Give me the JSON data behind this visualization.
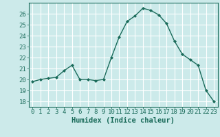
{
  "x": [
    0,
    1,
    2,
    3,
    4,
    5,
    6,
    7,
    8,
    9,
    10,
    11,
    12,
    13,
    14,
    15,
    16,
    17,
    18,
    19,
    20,
    21,
    22,
    23
  ],
  "y": [
    19.8,
    20.0,
    20.1,
    20.2,
    20.8,
    21.3,
    20.0,
    20.0,
    19.9,
    20.0,
    22.0,
    23.9,
    25.3,
    25.8,
    26.5,
    26.3,
    25.9,
    25.1,
    23.5,
    22.3,
    21.8,
    21.3,
    19.0,
    18.0
  ],
  "line_color": "#1a6b5a",
  "marker": "D",
  "marker_size": 2,
  "bg_color": "#cceaea",
  "grid_color": "#ffffff",
  "xlabel": "Humidex (Indice chaleur)",
  "xlim": [
    -0.5,
    23.5
  ],
  "ylim": [
    17.5,
    27.0
  ],
  "yticks": [
    18,
    19,
    20,
    21,
    22,
    23,
    24,
    25,
    26
  ],
  "xticks": [
    0,
    1,
    2,
    3,
    4,
    5,
    6,
    7,
    8,
    9,
    10,
    11,
    12,
    13,
    14,
    15,
    16,
    17,
    18,
    19,
    20,
    21,
    22,
    23
  ],
  "tick_label_fontsize": 6.5,
  "xlabel_fontsize": 7.5,
  "label_color": "#1a6b5a"
}
